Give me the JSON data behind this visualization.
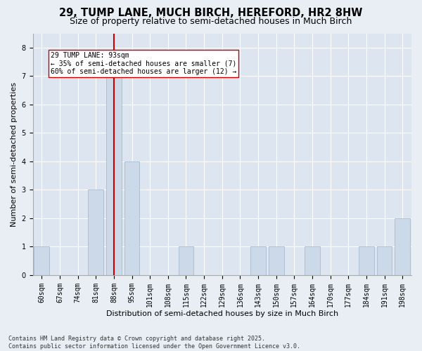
{
  "title": "29, TUMP LANE, MUCH BIRCH, HEREFORD, HR2 8HW",
  "subtitle": "Size of property relative to semi-detached houses in Much Birch",
  "xlabel": "Distribution of semi-detached houses by size in Much Birch",
  "ylabel": "Number of semi-detached properties",
  "bins": [
    "60sqm",
    "67sqm",
    "74sqm",
    "81sqm",
    "88sqm",
    "95sqm",
    "101sqm",
    "108sqm",
    "115sqm",
    "122sqm",
    "129sqm",
    "136sqm",
    "143sqm",
    "150sqm",
    "157sqm",
    "164sqm",
    "170sqm",
    "177sqm",
    "184sqm",
    "191sqm",
    "198sqm"
  ],
  "values": [
    1,
    0,
    0,
    3,
    7,
    4,
    0,
    0,
    1,
    0,
    0,
    0,
    1,
    1,
    0,
    1,
    0,
    0,
    1,
    1,
    2
  ],
  "subject_bin_index": 4,
  "bar_color": "#ccd9e8",
  "bar_edge_color": "#a0b4cc",
  "vline_color": "#cc0000",
  "annotation_text": "29 TUMP LANE: 93sqm\n← 35% of semi-detached houses are smaller (7)\n60% of semi-detached houses are larger (12) →",
  "annotation_box_facecolor": "#ffffff",
  "annotation_box_edgecolor": "#cc0000",
  "ylim": [
    0,
    8.5
  ],
  "yticks": [
    0,
    1,
    2,
    3,
    4,
    5,
    6,
    7,
    8
  ],
  "footer_line1": "Contains HM Land Registry data © Crown copyright and database right 2025.",
  "footer_line2": "Contains public sector information licensed under the Open Government Licence v3.0.",
  "fig_facecolor": "#e8eef4",
  "ax_facecolor": "#dce5f0",
  "grid_color": "#ffffff",
  "title_fontsize": 10.5,
  "subtitle_fontsize": 9,
  "tick_fontsize": 7,
  "ylabel_fontsize": 8,
  "xlabel_fontsize": 8,
  "annotation_fontsize": 7,
  "footer_fontsize": 6
}
